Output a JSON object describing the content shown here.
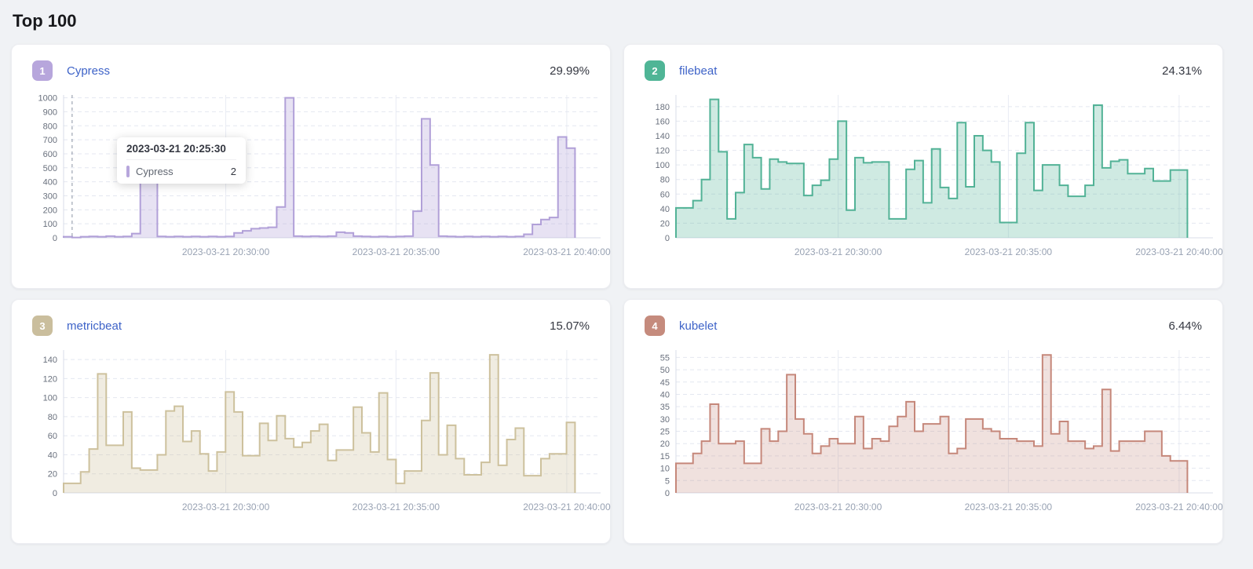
{
  "page": {
    "title": "Top 100",
    "background": "#f0f2f5"
  },
  "x_axis": {
    "labels": [
      "2023-03-21 20:30:00",
      "2023-03-21 20:35:00",
      "2023-03-21 20:40:00"
    ],
    "fracs": [
      0.302,
      0.619,
      0.937
    ]
  },
  "chart_data": [
    {
      "type": "area",
      "rank": "1",
      "name": "Cypress",
      "percent": "29.99%",
      "line_color": "#b1a0d8",
      "fill_color": "rgba(177,160,216,0.30)",
      "badge_color": "#b7a6dc",
      "y_ticks": [
        0,
        100,
        200,
        300,
        400,
        500,
        600,
        700,
        800,
        900,
        1000
      ],
      "y_max_plot": 1020,
      "values": [
        8,
        2,
        8,
        10,
        8,
        12,
        8,
        10,
        30,
        490,
        470,
        10,
        8,
        10,
        8,
        10,
        8,
        10,
        8,
        10,
        35,
        50,
        65,
        70,
        75,
        220,
        1000,
        12,
        10,
        12,
        10,
        12,
        40,
        35,
        12,
        10,
        8,
        10,
        8,
        10,
        12,
        190,
        850,
        520,
        12,
        10,
        8,
        10,
        8,
        10,
        8,
        10,
        8,
        10,
        25,
        95,
        130,
        145,
        720,
        640
      ],
      "crosshair_frac": 0.0159,
      "tooltip": {
        "date": "2023-03-21 20:25:30",
        "series": "Cypress",
        "value": "2"
      }
    },
    {
      "type": "area",
      "rank": "2",
      "name": "filebeat",
      "percent": "24.31%",
      "line_color": "#52b296",
      "fill_color": "rgba(82,178,150,0.28)",
      "badge_color": "#4fb596",
      "y_ticks": [
        0,
        20,
        40,
        60,
        80,
        100,
        120,
        140,
        160,
        180
      ],
      "y_max_plot": 196,
      "values": [
        41,
        41,
        51,
        80,
        190,
        118,
        26,
        62,
        128,
        110,
        67,
        108,
        104,
        102,
        102,
        58,
        72,
        79,
        108,
        160,
        38,
        110,
        103,
        104,
        104,
        26,
        26,
        94,
        106,
        48,
        122,
        69,
        54,
        158,
        70,
        140,
        120,
        104,
        21,
        21,
        116,
        158,
        65,
        100,
        100,
        72,
        57,
        57,
        72,
        182,
        96,
        105,
        107,
        88,
        88,
        95,
        78,
        78,
        93,
        93
      ]
    },
    {
      "type": "area",
      "rank": "3",
      "name": "metricbeat",
      "percent": "15.07%",
      "line_color": "#cdc19d",
      "fill_color": "rgba(205,193,157,0.30)",
      "badge_color": "#cabe9d",
      "y_ticks": [
        0,
        20,
        40,
        60,
        80,
        100,
        120,
        140
      ],
      "y_max_plot": 150,
      "values": [
        10,
        10,
        22,
        46,
        125,
        50,
        50,
        85,
        26,
        24,
        24,
        40,
        86,
        91,
        54,
        65,
        41,
        23,
        43,
        106,
        85,
        39,
        39,
        73,
        55,
        81,
        57,
        48,
        53,
        65,
        72,
        34,
        45,
        45,
        90,
        63,
        43,
        105,
        35,
        10,
        23,
        23,
        76,
        126,
        40,
        71,
        36,
        19,
        19,
        32,
        145,
        29,
        56,
        68,
        18,
        18,
        36,
        41,
        41,
        74
      ]
    },
    {
      "type": "area",
      "rank": "4",
      "name": "kubelet",
      "percent": "6.44%",
      "line_color": "#c5877a",
      "fill_color": "rgba(197,135,122,0.25)",
      "badge_color": "#c58b7d",
      "y_ticks": [
        0,
        5,
        10,
        15,
        20,
        25,
        30,
        35,
        40,
        45,
        50,
        55
      ],
      "y_max_plot": 58,
      "values": [
        12,
        12,
        16,
        21,
        36,
        20,
        20,
        21,
        12,
        12,
        26,
        21,
        25,
        48,
        30,
        24,
        16,
        19,
        22,
        20,
        20,
        31,
        18,
        22,
        21,
        27,
        31,
        37,
        25,
        28,
        28,
        31,
        16,
        18,
        30,
        30,
        26,
        25,
        22,
        22,
        21,
        21,
        19,
        56,
        24,
        29,
        21,
        21,
        18,
        19,
        42,
        17,
        21,
        21,
        21,
        25,
        25,
        15,
        13,
        13
      ]
    }
  ],
  "grid_colors": {
    "h_dashed": "#e4e7f0",
    "v_solid": "#e9ecf4",
    "axis": "#d8dde8",
    "crosshair": "#8a93a3"
  }
}
